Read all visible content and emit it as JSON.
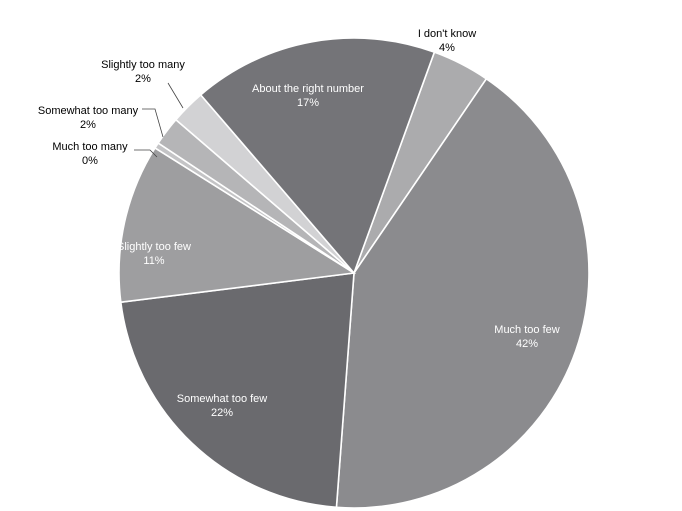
{
  "chart_data": {
    "type": "pie",
    "title": "",
    "slices": [
      {
        "label": "I don't know",
        "value": 4,
        "value_label": "4%",
        "color": "#ABABAD"
      },
      {
        "label": "Much too few",
        "value": 42,
        "value_label": "42%",
        "color": "#8B8B8E"
      },
      {
        "label": "Somewhat too few",
        "value": 22,
        "value_label": "22%",
        "color": "#6A6A6E"
      },
      {
        "label": "Slightly too few",
        "value": 11,
        "value_label": "11%",
        "color": "#9E9EA0"
      },
      {
        "label": "Much too many",
        "value": 0.4,
        "value_label": "0%",
        "color": "#C4C4C6"
      },
      {
        "label": "Somewhat too many",
        "value": 2,
        "value_label": "2%",
        "color": "#B5B5B7"
      },
      {
        "label": "Slightly too many",
        "value": 2.4,
        "value_label": "2%",
        "color": "#D2D2D4"
      },
      {
        "label": "About the right number",
        "value": 17,
        "value_label": "17%",
        "color": "#747478"
      }
    ],
    "start_angle_deg": 20,
    "direction": "clockwise",
    "legend": "none"
  }
}
